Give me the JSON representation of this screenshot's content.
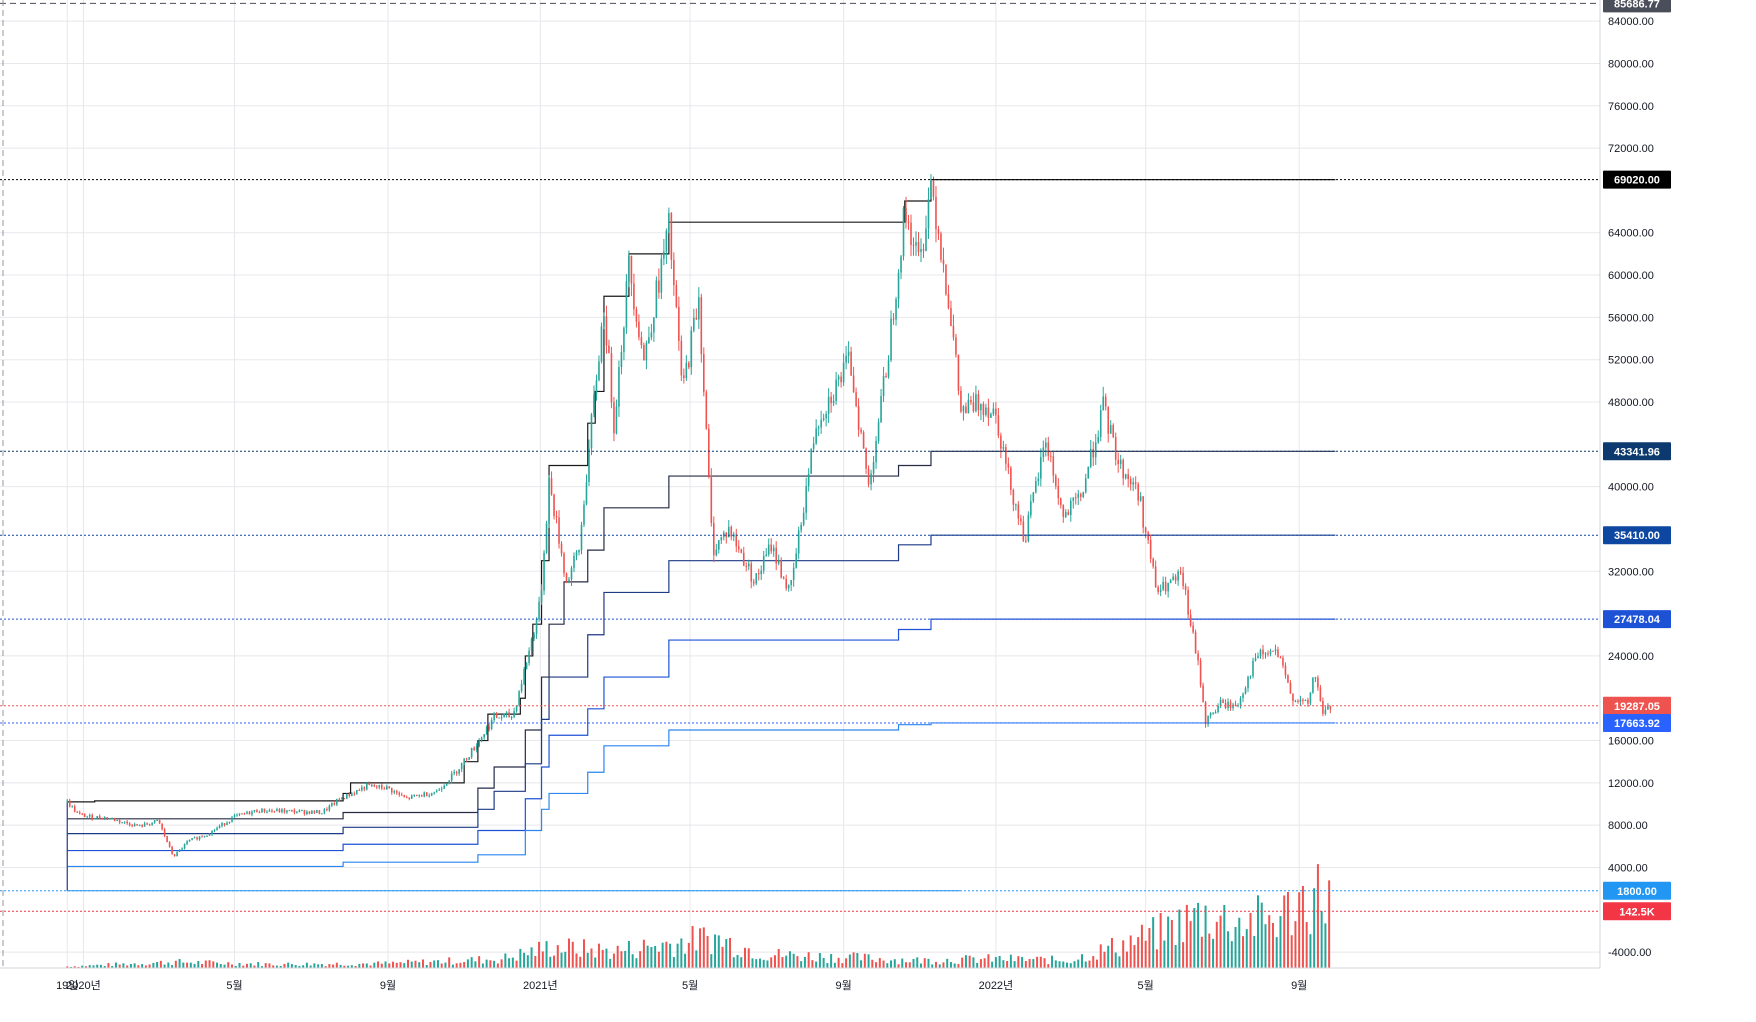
{
  "chart_data": {
    "type": "candlestick",
    "instrument": "BTC",
    "xaxis": {
      "tick_labels": [
        "19일",
        "2020년",
        "5월",
        "9월",
        "2021년",
        "5월",
        "9월",
        "2022년",
        "5월",
        "9월"
      ],
      "tick_dates": [
        "2019-12-19",
        "2020-01-01",
        "2020-05-01",
        "2020-09-01",
        "2021-01-01",
        "2021-05-01",
        "2021-09-01",
        "2022-01-01",
        "2022-05-01",
        "2022-09-01"
      ],
      "range": [
        "2019-12-18",
        "2023-04-30"
      ]
    },
    "yaxis": {
      "range": [
        -5500,
        86000
      ],
      "tick_labels": [
        "84000.00",
        "80000.00",
        "76000.00",
        "72000.00",
        "64000.00",
        "60000.00",
        "56000.00",
        "52000.00",
        "48000.00",
        "40000.00",
        "32000.00",
        "24000.00",
        "16000.00",
        "12000.00",
        "8000.00",
        "4000.00",
        "-4000.00"
      ],
      "tick_values": [
        84000,
        80000,
        76000,
        72000,
        64000,
        60000,
        56000,
        52000,
        48000,
        40000,
        32000,
        24000,
        16000,
        12000,
        8000,
        4000,
        -4000
      ],
      "grid": true
    },
    "price_path": [
      [
        "2019-12-19",
        10200
      ],
      [
        "2019-12-28",
        9000
      ],
      [
        "2020-01-05",
        8800
      ],
      [
        "2020-01-20",
        8700
      ],
      [
        "2020-02-01",
        8300
      ],
      [
        "2020-02-15",
        7900
      ],
      [
        "2020-03-01",
        8400
      ],
      [
        "2020-03-13",
        5000
      ],
      [
        "2020-03-25",
        6500
      ],
      [
        "2020-04-10",
        7200
      ],
      [
        "2020-05-01",
        8800
      ],
      [
        "2020-05-20",
        9400
      ],
      [
        "2020-06-15",
        9300
      ],
      [
        "2020-07-10",
        9200
      ],
      [
        "2020-07-25",
        10500
      ],
      [
        "2020-08-15",
        11700
      ],
      [
        "2020-09-01",
        11500
      ],
      [
        "2020-09-15",
        10500
      ],
      [
        "2020-10-10",
        11200
      ],
      [
        "2020-10-25",
        13000
      ],
      [
        "2020-11-10",
        15500
      ],
      [
        "2020-11-25",
        18200
      ],
      [
        "2020-12-10",
        18300
      ],
      [
        "2020-12-20",
        23000
      ],
      [
        "2021-01-01",
        29000
      ],
      [
        "2021-01-08",
        40500
      ],
      [
        "2021-01-22",
        31000
      ],
      [
        "2021-02-01",
        34000
      ],
      [
        "2021-02-12",
        47000
      ],
      [
        "2021-02-21",
        57000
      ],
      [
        "2021-03-01",
        46000
      ],
      [
        "2021-03-13",
        61000
      ],
      [
        "2021-03-25",
        52000
      ],
      [
        "2021-04-14",
        64500
      ],
      [
        "2021-04-25",
        49000
      ],
      [
        "2021-05-08",
        58000
      ],
      [
        "2021-05-19",
        34000
      ],
      [
        "2021-06-01",
        36000
      ],
      [
        "2021-06-22",
        31000
      ],
      [
        "2021-07-05",
        34500
      ],
      [
        "2021-07-20",
        29800
      ],
      [
        "2021-08-10",
        46000
      ],
      [
        "2021-09-06",
        52000
      ],
      [
        "2021-09-21",
        40000
      ],
      [
        "2021-10-05",
        51000
      ],
      [
        "2021-10-20",
        66000
      ],
      [
        "2021-11-01",
        61000
      ],
      [
        "2021-11-10",
        69000
      ],
      [
        "2021-11-25",
        57000
      ],
      [
        "2021-12-04",
        47000
      ],
      [
        "2021-12-20",
        48000
      ],
      [
        "2022-01-01",
        47000
      ],
      [
        "2022-01-10",
        41500
      ],
      [
        "2022-01-24",
        35000
      ],
      [
        "2022-02-10",
        44500
      ],
      [
        "2022-02-24",
        37000
      ],
      [
        "2022-03-10",
        39000
      ],
      [
        "2022-03-28",
        47500
      ],
      [
        "2022-04-10",
        42000
      ],
      [
        "2022-04-25",
        39500
      ],
      [
        "2022-05-10",
        30000
      ],
      [
        "2022-05-30",
        31500
      ],
      [
        "2022-06-13",
        22500
      ],
      [
        "2022-06-18",
        17800
      ],
      [
        "2022-06-30",
        19500
      ],
      [
        "2022-07-13",
        19200
      ],
      [
        "2022-07-29",
        24000
      ],
      [
        "2022-08-14",
        24400
      ],
      [
        "2022-08-26",
        20200
      ],
      [
        "2022-09-08",
        19300
      ],
      [
        "2022-09-13",
        22500
      ],
      [
        "2022-09-20",
        18700
      ],
      [
        "2022-09-27",
        19200
      ]
    ],
    "horizontal_levels": [
      {
        "value": 85686.77,
        "label": "85686.77",
        "color": "#4a4e5a"
      },
      {
        "value": 69020.0,
        "label": "69020.00",
        "color": "#000000"
      },
      {
        "value": 43341.96,
        "label": "43341.96",
        "color": "#0d3a6e"
      },
      {
        "value": 35410.0,
        "label": "35410.00",
        "color": "#0d47a1"
      },
      {
        "value": 27478.04,
        "label": "27478.04",
        "color": "#1e52d6"
      },
      {
        "value": 19287.05,
        "label": "19287.05",
        "color": "#ef5350"
      },
      {
        "value": 17663.92,
        "label": "17663.92",
        "color": "#2962ff"
      },
      {
        "value": 1800.0,
        "label": "1800.00",
        "color": "#2196f3"
      },
      {
        "value": -140,
        "label": "142.5K",
        "color": "#f23645"
      }
    ],
    "level_steps": [
      {
        "color": "#1a1a1a",
        "steps": [
          [
            "2019-12-19",
            10200
          ],
          [
            "2020-01-10",
            10300
          ],
          [
            "2020-07-27",
            11000
          ],
          [
            "2020-08-02",
            12000
          ],
          [
            "2020-11-01",
            14000
          ],
          [
            "2020-11-12",
            16000
          ],
          [
            "2020-11-20",
            18500
          ],
          [
            "2020-12-16",
            20000
          ],
          [
            "2020-12-20",
            24000
          ],
          [
            "2020-12-26",
            27000
          ],
          [
            "2021-01-02",
            33000
          ],
          [
            "2021-01-08",
            42000
          ],
          [
            "2021-02-08",
            46000
          ],
          [
            "2021-02-14",
            49000
          ],
          [
            "2021-02-21",
            58000
          ],
          [
            "2021-03-13",
            62000
          ],
          [
            "2021-04-14",
            65000
          ],
          [
            "2021-10-20",
            67000
          ],
          [
            "2021-11-10",
            69020
          ],
          [
            "2022-09-30",
            69020
          ]
        ]
      },
      {
        "color": "#262c46",
        "steps": [
          [
            "2019-12-19",
            8600
          ],
          [
            "2020-07-27",
            9200
          ],
          [
            "2020-11-12",
            11500
          ],
          [
            "2020-11-25",
            13500
          ],
          [
            "2020-12-20",
            17000
          ],
          [
            "2021-01-02",
            22000
          ],
          [
            "2021-01-08",
            27000
          ],
          [
            "2021-01-20",
            31000
          ],
          [
            "2021-02-08",
            34000
          ],
          [
            "2021-02-21",
            38000
          ],
          [
            "2021-04-14",
            41000
          ],
          [
            "2021-10-15",
            42000
          ],
          [
            "2021-11-10",
            43341.96
          ],
          [
            "2022-09-30",
            43341.96
          ]
        ]
      },
      {
        "color": "#1c3a86",
        "steps": [
          [
            "2019-12-19",
            7200
          ],
          [
            "2020-07-27",
            7800
          ],
          [
            "2020-11-12",
            9500
          ],
          [
            "2020-11-25",
            11200
          ],
          [
            "2020-12-20",
            13800
          ],
          [
            "2021-01-02",
            18000
          ],
          [
            "2021-01-08",
            22000
          ],
          [
            "2021-02-08",
            26000
          ],
          [
            "2021-02-21",
            30000
          ],
          [
            "2021-04-14",
            33000
          ],
          [
            "2021-10-15",
            34500
          ],
          [
            "2021-11-10",
            35410
          ],
          [
            "2022-09-30",
            35410
          ]
        ]
      },
      {
        "color": "#1e52d6",
        "steps": [
          [
            "2019-12-19",
            5600
          ],
          [
            "2020-07-27",
            6200
          ],
          [
            "2020-11-12",
            7500
          ],
          [
            "2020-12-20",
            10500
          ],
          [
            "2021-01-02",
            13500
          ],
          [
            "2021-01-08",
            16500
          ],
          [
            "2021-02-08",
            19000
          ],
          [
            "2021-02-21",
            22000
          ],
          [
            "2021-04-14",
            25500
          ],
          [
            "2021-10-15",
            26500
          ],
          [
            "2021-11-10",
            27478.04
          ],
          [
            "2022-09-30",
            27478.04
          ]
        ]
      },
      {
        "color": "#2a86f0",
        "steps": [
          [
            "2019-12-19",
            4100
          ],
          [
            "2020-07-27",
            4500
          ],
          [
            "2020-11-12",
            5200
          ],
          [
            "2020-12-20",
            7500
          ],
          [
            "2021-01-02",
            9500
          ],
          [
            "2021-01-08",
            11000
          ],
          [
            "2021-02-08",
            13000
          ],
          [
            "2021-02-21",
            15500
          ],
          [
            "2021-04-14",
            17000
          ],
          [
            "2021-10-15",
            17500
          ],
          [
            "2021-11-10",
            17663.92
          ],
          [
            "2022-09-30",
            17663.92
          ]
        ]
      }
    ],
    "volume": {
      "scale_note": "histogram at bottom of pane",
      "profile": [
        [
          "2019-12-19",
          0.02
        ],
        [
          "2020-03-13",
          0.08
        ],
        [
          "2020-06-01",
          0.05
        ],
        [
          "2020-09-01",
          0.06
        ],
        [
          "2020-12-01",
          0.12
        ],
        [
          "2021-01-10",
          0.28
        ],
        [
          "2021-03-01",
          0.22
        ],
        [
          "2021-05-19",
          0.4
        ],
        [
          "2021-07-01",
          0.18
        ],
        [
          "2021-09-01",
          0.14
        ],
        [
          "2021-11-01",
          0.1
        ],
        [
          "2022-01-01",
          0.12
        ],
        [
          "2022-03-01",
          0.1
        ],
        [
          "2022-05-10",
          0.45
        ],
        [
          "2022-06-15",
          0.7
        ],
        [
          "2022-07-15",
          0.6
        ],
        [
          "2022-08-15",
          0.65
        ],
        [
          "2022-09-08",
          0.95
        ],
        [
          "2022-09-27",
          1.0
        ]
      ]
    },
    "colors": {
      "up": "#26a69a",
      "down": "#ef5350",
      "grid": "#e6e8ec",
      "axis_text": "#131722"
    }
  }
}
